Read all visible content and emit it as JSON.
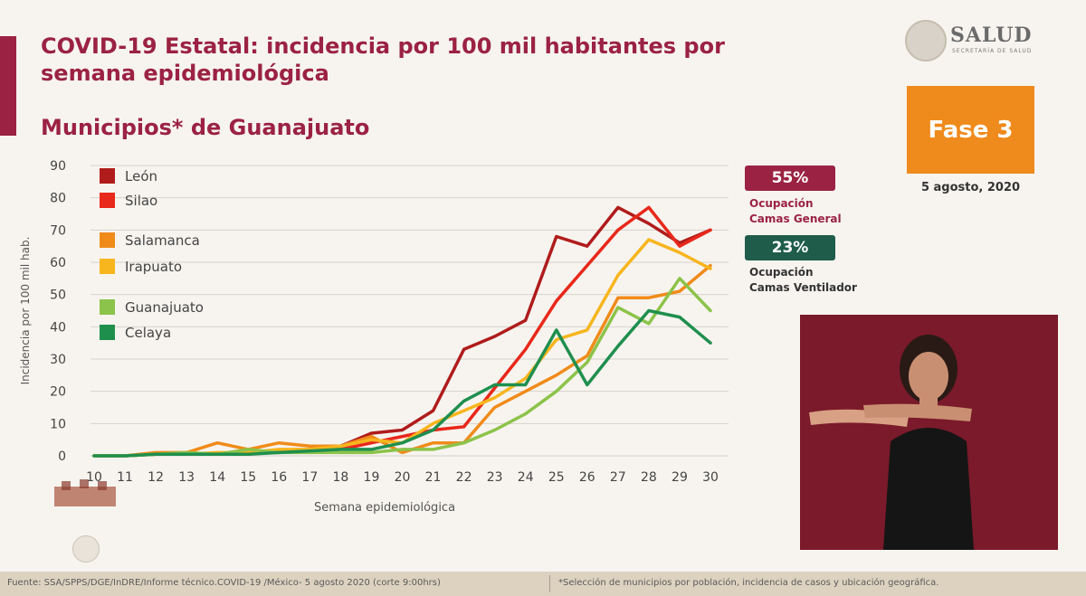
{
  "title": "COVID-19 Estatal: incidencia por 100 mil habitantes por semana epidemiológica",
  "subtitle": "Municipios* de Guanajuato",
  "logo": {
    "text": "SALUD",
    "subtext": "SECRETARÍA DE SALUD"
  },
  "fase": {
    "label": "Fase 3",
    "date": "5 agosto, 2020",
    "color": "#ef8a1c"
  },
  "occupancy": {
    "general": {
      "value": "55%",
      "label_line1": "Ocupación",
      "label_line2": "Camas General",
      "color": "#9b2242"
    },
    "ventilator": {
      "value": "23%",
      "label_line1": "Ocupación",
      "label_line2": "Camas Ventilador",
      "color": "#1f5c4a"
    }
  },
  "footer": {
    "source": "Fuente: SSA/SPPS/DGE/InDRE/Informe técnico.COVID-19 /México- 5 agosto 2020 (corte 9:00hrs)",
    "note": "*Selección de municipios por población, incidencia de casos y ubicación geográfica."
  },
  "chart_data": {
    "type": "line",
    "title": "",
    "xlabel": "Semana epidemiológica",
    "ylabel": "Incidencia por 100 mil hab.",
    "x": [
      10,
      11,
      12,
      13,
      14,
      15,
      16,
      17,
      18,
      19,
      20,
      21,
      22,
      23,
      24,
      25,
      26,
      27,
      28,
      29,
      30
    ],
    "ylim": [
      0,
      90
    ],
    "yticks": [
      0,
      10,
      20,
      30,
      40,
      50,
      60,
      70,
      80,
      90
    ],
    "grid": true,
    "legend_position": "top-left",
    "series": [
      {
        "name": "León",
        "color": "#b01c1c",
        "values": [
          0,
          0,
          0.5,
          0.5,
          0.5,
          1,
          1,
          2,
          3,
          7,
          8,
          14,
          33,
          37,
          42,
          68,
          65,
          77,
          72,
          66,
          70
        ]
      },
      {
        "name": "Silao",
        "color": "#e8281a",
        "values": [
          0,
          0,
          0.5,
          0.5,
          0.5,
          0.5,
          1.5,
          1.5,
          2,
          4,
          6,
          8,
          9,
          21,
          33,
          48,
          59,
          70,
          77,
          65,
          70
        ]
      },
      {
        "name": "Salamanca",
        "color": "#f08b1a",
        "values": [
          0,
          0,
          1,
          1,
          4,
          2,
          4,
          3,
          3,
          6,
          1,
          4,
          4,
          15,
          20,
          25,
          31,
          49,
          49,
          51,
          59
        ]
      },
      {
        "name": "Irapuato",
        "color": "#f7b51e",
        "values": [
          0,
          0,
          0.5,
          0.5,
          1,
          1,
          2,
          2,
          3,
          5,
          4,
          10,
          14,
          18,
          24,
          36,
          39,
          56,
          67,
          63,
          58
        ]
      },
      {
        "name": "Guanajuato",
        "color": "#8cc34a",
        "values": [
          0,
          0,
          0.5,
          1,
          0.5,
          2,
          1,
          1,
          1,
          1,
          2,
          2,
          4,
          8,
          13,
          20,
          29,
          46,
          41,
          55,
          45
        ]
      },
      {
        "name": "Celaya",
        "color": "#1f8f4e",
        "values": [
          0,
          0,
          0.5,
          0.5,
          0.5,
          0.5,
          1,
          1.5,
          2,
          2,
          4,
          8,
          17,
          22,
          22,
          39,
          22,
          34,
          45,
          43,
          35
        ]
      }
    ]
  }
}
